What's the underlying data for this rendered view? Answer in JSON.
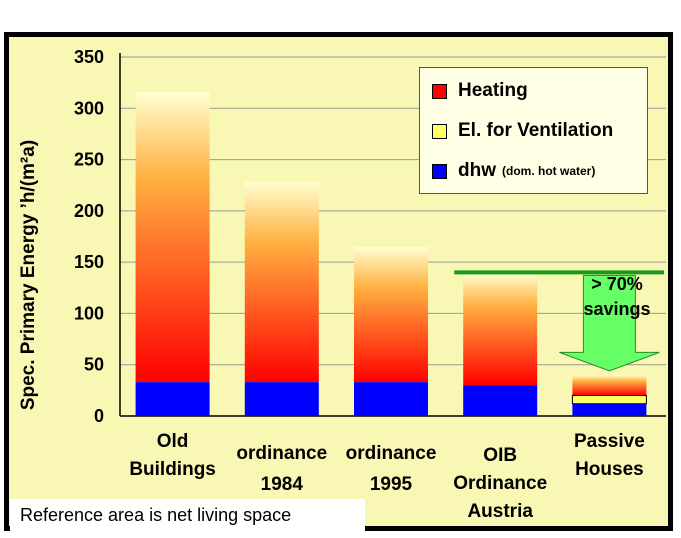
{
  "chart_data": {
    "type": "bar",
    "ylabel": "Spec. Primary Energy ’h/(m²a)",
    "ylim": [
      0,
      350
    ],
    "yticks": [
      "0",
      "50",
      "100",
      "150",
      "200",
      "250",
      "300",
      "350"
    ],
    "grid": true,
    "legend_position": "top-right",
    "categories": [
      "Old\nBuildings",
      "ordinance\n1984",
      "ordinance\n1995",
      "OIB\nOrdinance\nAustria",
      "Passive\nHouses"
    ],
    "series": [
      {
        "name": "dhw",
        "values": [
          33,
          33,
          33,
          30,
          12
        ]
      },
      {
        "name": "El. for Ventilation",
        "values": [
          0,
          0,
          0,
          0,
          8
        ]
      },
      {
        "name": "Heating",
        "values": [
          283,
          195,
          132,
          110,
          20
        ]
      }
    ],
    "totals": [
      316,
      228,
      165,
      140,
      40
    ],
    "reference_line": 140,
    "annotation": "> 70% savings"
  },
  "legend": {
    "heating": "Heating",
    "ventilation": "El. for Ventilation",
    "dhw": "dhw",
    "dhw_note": "(dom. hot water)"
  },
  "colors": {
    "heating": "#ff0000",
    "ventilation": "#ffff66",
    "dhw": "#0000ff",
    "background": "#f8f7b3",
    "reference_line": "#1a9a1a",
    "arrow": "#66ff66"
  },
  "note": "Reference area is net living space"
}
